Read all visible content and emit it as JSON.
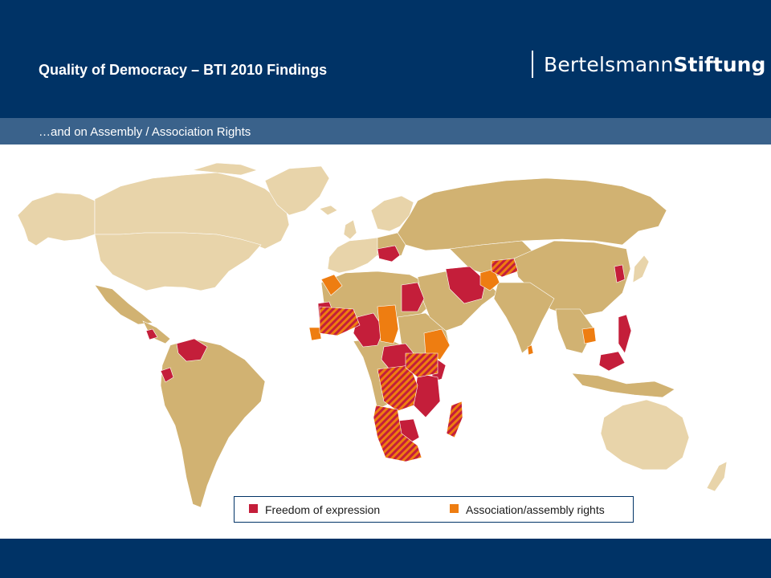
{
  "header": {
    "title": "Quality of Democracy – BTI 2010 Findings",
    "brand_part1": "Bertelsmann",
    "brand_part2": "Stiftung"
  },
  "subtitle": "…and on Assembly / Association Rights",
  "legend": {
    "items": [
      {
        "label": "Freedom of expression",
        "color": "#c41e3a"
      },
      {
        "label": "Association/assembly rights",
        "color": "#ee7d11"
      }
    ]
  },
  "colors": {
    "header_bg": "#003366",
    "subbar_bg": "#3a628b",
    "land_bti": "#d1b272",
    "land_non_bti": "#e8d4aa",
    "freedom_of_expression": "#c41e3a",
    "association_assembly": "#ee7d11"
  }
}
